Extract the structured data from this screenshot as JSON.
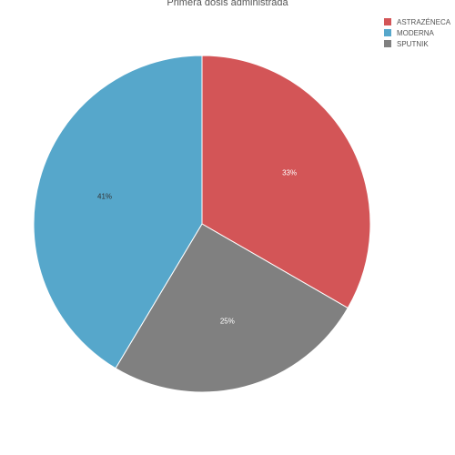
{
  "chart_data": {
    "type": "pie",
    "title": "Primera dosis administrada",
    "legend_position": "top-right",
    "slices": [
      {
        "name": "ASTRAZÉNECA",
        "value": 33,
        "label": "33%",
        "color": "#d35557"
      },
      {
        "name": "SPUTNIK",
        "value": 25,
        "label": "25%",
        "color": "#808080"
      },
      {
        "name": "MODERNA",
        "value": 41,
        "label": "41%",
        "color": "#56a7cb"
      }
    ],
    "legend": [
      {
        "name": "ASTRAZÉNECA",
        "color": "#d35557"
      },
      {
        "name": "MODERNA",
        "color": "#56a7cb"
      },
      {
        "name": "SPUTNIK",
        "color": "#808080"
      }
    ]
  }
}
